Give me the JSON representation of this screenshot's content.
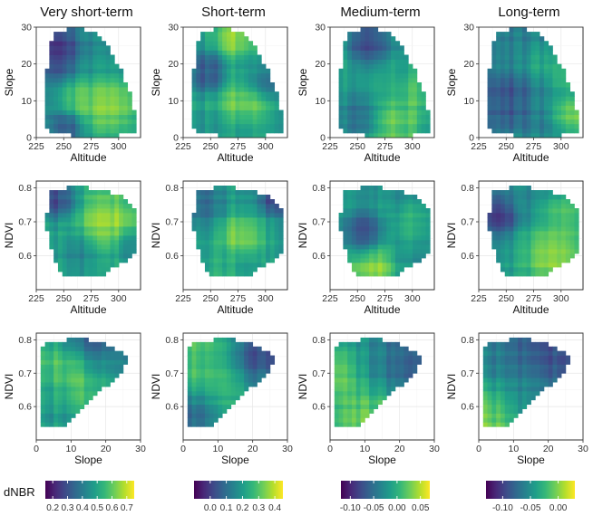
{
  "figure": {
    "colormap": "viridis",
    "fill_label": "dNBR"
  },
  "chart_data": [
    {
      "type": "heatmap",
      "panel": "very-short-altitude-slope",
      "title": "Very short-term",
      "xlabel": "Altitude",
      "ylabel": "Slope",
      "xlim": [
        225,
        320
      ],
      "ylim": [
        0,
        30
      ],
      "xticks": [
        225,
        250,
        275,
        300
      ],
      "yticks": [
        0,
        10,
        20,
        30
      ],
      "fill_range": [
        0.15,
        0.75
      ],
      "hull": [
        [
          240,
          28
        ],
        [
          258,
          30
        ],
        [
          278,
          29
        ],
        [
          290,
          25
        ],
        [
          303,
          18
        ],
        [
          310,
          12
        ],
        [
          315,
          7
        ],
        [
          316,
          2
        ],
        [
          300,
          0.5
        ],
        [
          258,
          0.5
        ],
        [
          236,
          2
        ],
        [
          232,
          6
        ],
        [
          233,
          14
        ],
        [
          236,
          22
        ]
      ],
      "hotspots": [
        {
          "x": 245,
          "y": 24,
          "v": 0.18,
          "s": 12
        },
        {
          "x": 290,
          "y": 9,
          "v": 0.74,
          "s": 14
        },
        {
          "x": 262,
          "y": 10,
          "v": 0.62,
          "s": 10
        },
        {
          "x": 255,
          "y": 3,
          "v": 0.25,
          "s": 8
        }
      ],
      "base": 0.45
    },
    {
      "type": "heatmap",
      "panel": "short-altitude-slope",
      "title": "Short-term",
      "xlabel": "Altitude",
      "ylabel": "Slope",
      "xlim": [
        225,
        320
      ],
      "ylim": [
        0,
        30
      ],
      "xticks": [
        225,
        250,
        275,
        300
      ],
      "yticks": [
        0,
        10,
        20,
        30
      ],
      "fill_range": [
        -0.1,
        0.45
      ],
      "hull": [
        [
          240,
          28
        ],
        [
          258,
          30
        ],
        [
          278,
          29
        ],
        [
          290,
          25
        ],
        [
          303,
          18
        ],
        [
          310,
          12
        ],
        [
          315,
          7
        ],
        [
          316,
          2
        ],
        [
          300,
          0.5
        ],
        [
          258,
          0.5
        ],
        [
          236,
          2
        ],
        [
          232,
          6
        ],
        [
          233,
          14
        ],
        [
          236,
          22
        ]
      ],
      "hotspots": [
        {
          "x": 272,
          "y": 27,
          "v": 0.42,
          "s": 10
        },
        {
          "x": 280,
          "y": 10,
          "v": 0.38,
          "s": 12
        },
        {
          "x": 247,
          "y": 18,
          "v": 0.0,
          "s": 9
        },
        {
          "x": 300,
          "y": 15,
          "v": 0.05,
          "s": 9
        }
      ],
      "base": 0.2
    },
    {
      "type": "heatmap",
      "panel": "medium-altitude-slope",
      "title": "Medium-term",
      "xlabel": "Altitude",
      "ylabel": "Slope",
      "xlim": [
        225,
        320
      ],
      "ylim": [
        0,
        30
      ],
      "xticks": [
        225,
        250,
        275,
        300
      ],
      "yticks": [
        0,
        10,
        20,
        30
      ],
      "fill_range": [
        -0.12,
        0.07
      ],
      "hull": [
        [
          240,
          28
        ],
        [
          258,
          30
        ],
        [
          278,
          29
        ],
        [
          290,
          25
        ],
        [
          303,
          18
        ],
        [
          310,
          12
        ],
        [
          315,
          7
        ],
        [
          316,
          2
        ],
        [
          300,
          0.5
        ],
        [
          258,
          0.5
        ],
        [
          236,
          2
        ],
        [
          232,
          6
        ],
        [
          233,
          14
        ],
        [
          236,
          22
        ]
      ],
      "hotspots": [
        {
          "x": 262,
          "y": 26,
          "v": -0.11,
          "s": 11
        },
        {
          "x": 250,
          "y": 6,
          "v": -0.06,
          "s": 10
        },
        {
          "x": 288,
          "y": 4,
          "v": 0.04,
          "s": 10
        },
        {
          "x": 300,
          "y": 12,
          "v": 0.03,
          "s": 9
        }
      ],
      "base": -0.01
    },
    {
      "type": "heatmap",
      "panel": "long-altitude-slope",
      "title": "Long-term",
      "xlabel": "Altitude",
      "ylabel": "Slope",
      "xlim": [
        225,
        320
      ],
      "ylim": [
        0,
        30
      ],
      "xticks": [
        225,
        250,
        275,
        300
      ],
      "yticks": [
        0,
        10,
        20,
        30
      ],
      "fill_range": [
        -0.13,
        0.03
      ],
      "hull": [
        [
          240,
          28
        ],
        [
          258,
          30
        ],
        [
          278,
          29
        ],
        [
          290,
          25
        ],
        [
          303,
          18
        ],
        [
          310,
          12
        ],
        [
          315,
          7
        ],
        [
          316,
          2
        ],
        [
          300,
          0.5
        ],
        [
          258,
          0.5
        ],
        [
          236,
          2
        ],
        [
          232,
          6
        ],
        [
          233,
          14
        ],
        [
          236,
          22
        ]
      ],
      "hotspots": [
        {
          "x": 310,
          "y": 6,
          "v": 0.02,
          "s": 9
        },
        {
          "x": 252,
          "y": 10,
          "v": -0.1,
          "s": 11
        },
        {
          "x": 285,
          "y": 20,
          "v": -0.03,
          "s": 10
        },
        {
          "x": 305,
          "y": 16,
          "v": 0.0,
          "s": 8
        }
      ],
      "base": -0.06
    },
    {
      "type": "heatmap",
      "panel": "very-short-altitude-ndvi",
      "title": "",
      "xlabel": "Altitude",
      "ylabel": "NDVI",
      "xlim": [
        225,
        320
      ],
      "ylim": [
        0.5,
        0.82
      ],
      "xticks": [
        225,
        250,
        275,
        300,
        null
      ],
      "yticks": [
        0.6,
        0.7,
        0.8
      ],
      "fill_range": [
        0.15,
        0.75
      ],
      "hull": [
        [
          236,
          0.79
        ],
        [
          260,
          0.805
        ],
        [
          285,
          0.795
        ],
        [
          305,
          0.775
        ],
        [
          316,
          0.74
        ],
        [
          316,
          0.62
        ],
        [
          305,
          0.58
        ],
        [
          280,
          0.535
        ],
        [
          250,
          0.535
        ],
        [
          240,
          0.6
        ],
        [
          234,
          0.68
        ]
      ],
      "hotspots": [
        {
          "x": 242,
          "y": 0.77,
          "v": 0.2,
          "s": 10
        },
        {
          "x": 292,
          "y": 0.7,
          "v": 0.72,
          "s": 14
        },
        {
          "x": 265,
          "y": 0.6,
          "v": 0.4,
          "s": 10
        },
        {
          "x": 310,
          "y": 0.63,
          "v": 0.4,
          "s": 8
        }
      ],
      "base": 0.5
    },
    {
      "type": "heatmap",
      "panel": "short-altitude-ndvi",
      "title": "",
      "xlabel": "Altitude",
      "ylabel": "NDVI",
      "xlim": [
        225,
        320
      ],
      "ylim": [
        0.5,
        0.82
      ],
      "xticks": [
        225,
        250,
        275,
        300
      ],
      "yticks": [
        0.6,
        0.7,
        0.8
      ],
      "fill_range": [
        -0.1,
        0.45
      ],
      "hull": [
        [
          236,
          0.79
        ],
        [
          260,
          0.805
        ],
        [
          285,
          0.795
        ],
        [
          305,
          0.775
        ],
        [
          316,
          0.74
        ],
        [
          316,
          0.62
        ],
        [
          305,
          0.58
        ],
        [
          280,
          0.535
        ],
        [
          250,
          0.535
        ],
        [
          240,
          0.6
        ],
        [
          234,
          0.68
        ]
      ],
      "hotspots": [
        {
          "x": 308,
          "y": 0.77,
          "v": -0.08,
          "s": 8
        },
        {
          "x": 278,
          "y": 0.66,
          "v": 0.42,
          "s": 10
        },
        {
          "x": 245,
          "y": 0.76,
          "v": 0.05,
          "s": 10
        },
        {
          "x": 262,
          "y": 0.58,
          "v": 0.25,
          "s": 10
        }
      ],
      "base": 0.2
    },
    {
      "type": "heatmap",
      "panel": "medium-altitude-ndvi",
      "title": "",
      "xlabel": "Altitude",
      "ylabel": "NDVI",
      "xlim": [
        225,
        320
      ],
      "ylim": [
        0.5,
        0.82
      ],
      "xticks": [
        225,
        250,
        275,
        300
      ],
      "yticks": [
        0.6,
        0.7,
        0.8
      ],
      "fill_range": [
        -0.12,
        0.07
      ],
      "hull": [
        [
          236,
          0.79
        ],
        [
          260,
          0.805
        ],
        [
          285,
          0.795
        ],
        [
          305,
          0.775
        ],
        [
          316,
          0.74
        ],
        [
          316,
          0.62
        ],
        [
          305,
          0.58
        ],
        [
          280,
          0.535
        ],
        [
          250,
          0.535
        ],
        [
          240,
          0.6
        ],
        [
          234,
          0.68
        ]
      ],
      "hotspots": [
        {
          "x": 255,
          "y": 0.67,
          "v": -0.09,
          "s": 10
        },
        {
          "x": 262,
          "y": 0.56,
          "v": 0.06,
          "s": 11
        },
        {
          "x": 300,
          "y": 0.7,
          "v": 0.02,
          "s": 9
        },
        {
          "x": 280,
          "y": 0.78,
          "v": -0.03,
          "s": 10
        }
      ],
      "base": -0.02
    },
    {
      "type": "heatmap",
      "panel": "long-altitude-ndvi",
      "title": "",
      "xlabel": "Altitude",
      "ylabel": "NDVI",
      "xlim": [
        225,
        320
      ],
      "ylim": [
        0.5,
        0.82
      ],
      "xticks": [
        225,
        250,
        275,
        300
      ],
      "yticks": [
        0.6,
        0.7,
        0.8
      ],
      "fill_range": [
        -0.13,
        0.03
      ],
      "hull": [
        [
          236,
          0.79
        ],
        [
          260,
          0.805
        ],
        [
          285,
          0.795
        ],
        [
          305,
          0.775
        ],
        [
          316,
          0.74
        ],
        [
          316,
          0.62
        ],
        [
          305,
          0.58
        ],
        [
          280,
          0.535
        ],
        [
          250,
          0.535
        ],
        [
          240,
          0.6
        ],
        [
          234,
          0.68
        ]
      ],
      "hotspots": [
        {
          "x": 245,
          "y": 0.72,
          "v": -0.12,
          "s": 10
        },
        {
          "x": 292,
          "y": 0.6,
          "v": 0.03,
          "s": 13
        },
        {
          "x": 300,
          "y": 0.72,
          "v": 0.0,
          "s": 9
        },
        {
          "x": 262,
          "y": 0.78,
          "v": -0.06,
          "s": 9
        }
      ],
      "base": -0.04
    },
    {
      "type": "heatmap",
      "panel": "very-short-slope-ndvi",
      "title": "",
      "xlabel": "Slope",
      "ylabel": "NDVI",
      "xlim": [
        0,
        30
      ],
      "ylim": [
        0.5,
        0.82
      ],
      "xticks": [
        0,
        10,
        20,
        30
      ],
      "yticks": [
        0.6,
        0.7,
        0.8
      ],
      "fill_range": [
        0.15,
        0.75
      ],
      "hull": [
        [
          2,
          0.79
        ],
        [
          12,
          0.805
        ],
        [
          20,
          0.79
        ],
        [
          27,
          0.745
        ],
        [
          24,
          0.7
        ],
        [
          16,
          0.62
        ],
        [
          9,
          0.545
        ],
        [
          2,
          0.535
        ],
        [
          1,
          0.6
        ],
        [
          1,
          0.7
        ]
      ],
      "hotspots": [
        {
          "x": 16,
          "y": 0.79,
          "v": 0.18,
          "s": 5
        },
        {
          "x": 12,
          "y": 0.71,
          "v": 0.7,
          "s": 6
        },
        {
          "x": 4,
          "y": 0.6,
          "v": 0.45,
          "s": 6
        },
        {
          "x": 23,
          "y": 0.74,
          "v": 0.35,
          "s": 5
        }
      ],
      "base": 0.5
    },
    {
      "type": "heatmap",
      "panel": "short-slope-ndvi",
      "title": "",
      "xlabel": "Slope",
      "ylabel": "NDVI",
      "xlim": [
        0,
        30
      ],
      "ylim": [
        0.5,
        0.82
      ],
      "xticks": [
        0,
        10,
        20,
        30
      ],
      "yticks": [
        0.6,
        0.7,
        0.8
      ],
      "fill_range": [
        -0.1,
        0.45
      ],
      "hull": [
        [
          2,
          0.79
        ],
        [
          12,
          0.805
        ],
        [
          20,
          0.79
        ],
        [
          27,
          0.745
        ],
        [
          24,
          0.7
        ],
        [
          16,
          0.62
        ],
        [
          9,
          0.545
        ],
        [
          2,
          0.535
        ],
        [
          1,
          0.6
        ],
        [
          1,
          0.7
        ]
      ],
      "hotspots": [
        {
          "x": 20,
          "y": 0.76,
          "v": -0.05,
          "s": 6
        },
        {
          "x": 8,
          "y": 0.74,
          "v": 0.38,
          "s": 6
        },
        {
          "x": 3,
          "y": 0.56,
          "v": 0.0,
          "s": 5
        },
        {
          "x": 12,
          "y": 0.62,
          "v": 0.25,
          "s": 6
        }
      ],
      "base": 0.2
    },
    {
      "type": "heatmap",
      "panel": "medium-slope-ndvi",
      "title": "",
      "xlabel": "Slope",
      "ylabel": "NDVI",
      "xlim": [
        0,
        30
      ],
      "ylim": [
        0.5,
        0.82
      ],
      "xticks": [
        0,
        10,
        20,
        30
      ],
      "yticks": [
        0.6,
        0.7,
        0.8
      ],
      "fill_range": [
        -0.12,
        0.07
      ],
      "hull": [
        [
          2,
          0.79
        ],
        [
          12,
          0.805
        ],
        [
          20,
          0.79
        ],
        [
          27,
          0.745
        ],
        [
          24,
          0.7
        ],
        [
          16,
          0.62
        ],
        [
          9,
          0.545
        ],
        [
          2,
          0.535
        ],
        [
          1,
          0.6
        ],
        [
          1,
          0.7
        ]
      ],
      "hotspots": [
        {
          "x": 2,
          "y": 0.7,
          "v": 0.06,
          "s": 4
        },
        {
          "x": 20,
          "y": 0.74,
          "v": -0.1,
          "s": 6
        },
        {
          "x": 10,
          "y": 0.58,
          "v": 0.04,
          "s": 6
        },
        {
          "x": 12,
          "y": 0.74,
          "v": -0.02,
          "s": 6
        }
      ],
      "base": -0.01
    },
    {
      "type": "heatmap",
      "panel": "long-slope-ndvi",
      "title": "",
      "xlabel": "Slope",
      "ylabel": "NDVI",
      "xlim": [
        0,
        30
      ],
      "ylim": [
        0.5,
        0.82
      ],
      "xticks": [
        0,
        10,
        20,
        30
      ],
      "yticks": [
        0.6,
        0.7,
        0.8
      ],
      "fill_range": [
        -0.13,
        0.03
      ],
      "hull": [
        [
          2,
          0.79
        ],
        [
          12,
          0.805
        ],
        [
          20,
          0.79
        ],
        [
          27,
          0.745
        ],
        [
          24,
          0.7
        ],
        [
          16,
          0.62
        ],
        [
          9,
          0.545
        ],
        [
          2,
          0.535
        ],
        [
          1,
          0.6
        ],
        [
          1,
          0.7
        ]
      ],
      "hotspots": [
        {
          "x": 3,
          "y": 0.58,
          "v": 0.02,
          "s": 5
        },
        {
          "x": 18,
          "y": 0.76,
          "v": -0.11,
          "s": 7
        },
        {
          "x": 12,
          "y": 0.66,
          "v": -0.05,
          "s": 6
        },
        {
          "x": 4,
          "y": 0.74,
          "v": -0.06,
          "s": 5
        }
      ],
      "base": -0.05
    }
  ],
  "colorbars": [
    {
      "ticks": [
        "0.2",
        "0.3",
        "0.4",
        "0.5",
        "0.6",
        "0.7"
      ],
      "tick_values": [
        0.2,
        0.3,
        0.4,
        0.5,
        0.6,
        0.7
      ],
      "range": [
        0.15,
        0.75
      ]
    },
    {
      "ticks": [
        "0.0",
        "0.1",
        "0.2",
        "0.3",
        "0.4"
      ],
      "tick_values": [
        0.0,
        0.1,
        0.2,
        0.3,
        0.4
      ],
      "range": [
        -0.1,
        0.45
      ]
    },
    {
      "ticks": [
        "-0.10",
        "-0.05",
        "0.00",
        "0.05"
      ],
      "tick_values": [
        -0.1,
        -0.05,
        0.0,
        0.05
      ],
      "range": [
        -0.12,
        0.07
      ]
    },
    {
      "ticks": [
        "-0.10",
        "-0.05",
        "0.00"
      ],
      "tick_values": [
        -0.1,
        -0.05,
        0.0
      ],
      "range": [
        -0.13,
        0.03
      ]
    }
  ]
}
